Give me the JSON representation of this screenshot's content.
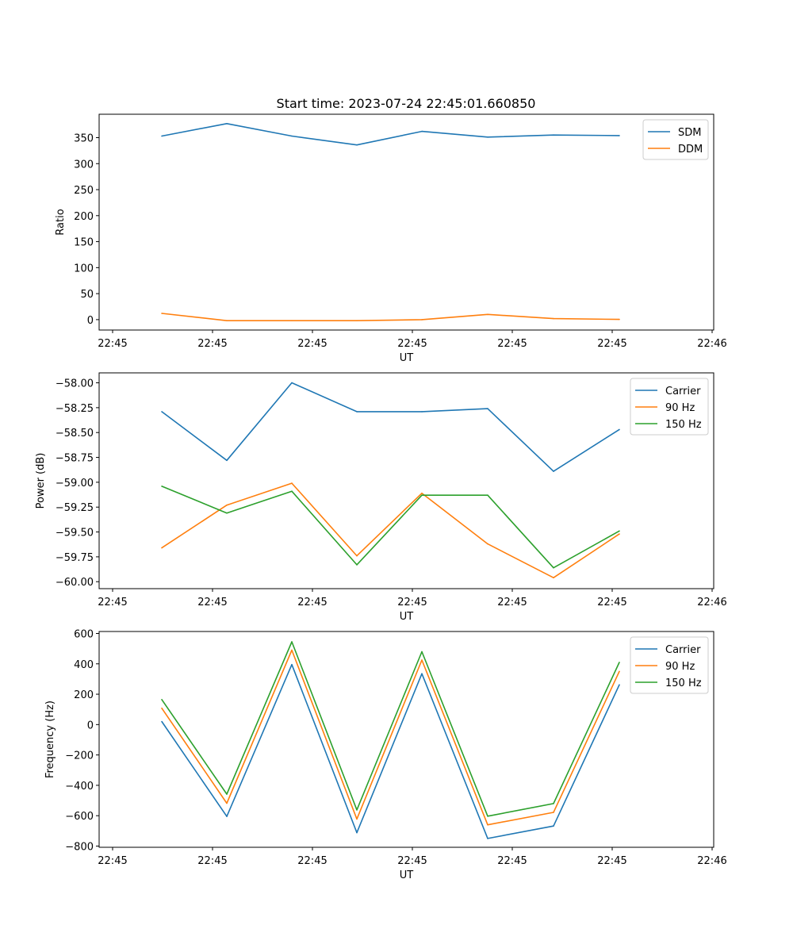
{
  "figure_title": "Start time: 2023-07-24 22:45:01.660850",
  "chart_data": [
    {
      "type": "line",
      "title": "Start time: 2023-07-24 22:45:01.660850",
      "xlabel": "UT",
      "ylabel": "Ratio",
      "x_tick_labels": [
        "22:45",
        "22:45",
        "22:45",
        "22:45",
        "22:45",
        "22:45",
        "22:46"
      ],
      "y_ticks": [
        0,
        50,
        100,
        150,
        200,
        250,
        300,
        350
      ],
      "ylim": [
        -20,
        395
      ],
      "legend": "top-right",
      "series": [
        {
          "name": "SDM",
          "color": "#1f77b4",
          "values": [
            353,
            377,
            353,
            336,
            362,
            351,
            355,
            354
          ]
        },
        {
          "name": "DDM",
          "color": "#ff7f0e",
          "values": [
            12,
            -2,
            -2,
            -2,
            0,
            10,
            2,
            0.5
          ]
        }
      ]
    },
    {
      "type": "line",
      "title": "",
      "xlabel": "UT",
      "ylabel": "Power (dB)",
      "x_tick_labels": [
        "22:45",
        "22:45",
        "22:45",
        "22:45",
        "22:45",
        "22:45",
        "22:46"
      ],
      "y_ticks": [
        -60.0,
        -59.75,
        -59.5,
        -59.25,
        -59.0,
        -58.75,
        -58.5,
        -58.25,
        -58.0
      ],
      "y_tick_labels": [
        "−60.00",
        "−59.75",
        "−59.50",
        "−59.25",
        "−59.00",
        "−58.75",
        "−58.50",
        "−58.25",
        "−58.00"
      ],
      "ylim": [
        -60.07,
        -57.9
      ],
      "legend": "top-right",
      "series": [
        {
          "name": "Carrier",
          "color": "#1f77b4",
          "values": [
            -58.29,
            -58.78,
            -58.0,
            -58.29,
            -58.29,
            -58.26,
            -58.89,
            -58.47
          ]
        },
        {
          "name": "90 Hz",
          "color": "#ff7f0e",
          "values": [
            -59.66,
            -59.23,
            -59.01,
            -59.74,
            -59.11,
            -59.62,
            -59.96,
            -59.52
          ]
        },
        {
          "name": "150 Hz",
          "color": "#2ca02c",
          "values": [
            -59.04,
            -59.31,
            -59.09,
            -59.83,
            -59.13,
            -59.13,
            -59.86,
            -59.49
          ]
        }
      ]
    },
    {
      "type": "line",
      "title": "",
      "xlabel": "UT",
      "ylabel": "Frequency (Hz)",
      "x_tick_labels": [
        "22:45",
        "22:45",
        "22:45",
        "22:45",
        "22:45",
        "22:45",
        "22:46"
      ],
      "y_ticks": [
        -800,
        -600,
        -400,
        -200,
        0,
        200,
        400,
        600
      ],
      "y_tick_labels": [
        "−800",
        "−600",
        "−400",
        "−200",
        "0",
        "200",
        "400",
        "600"
      ],
      "ylim": [
        -808,
        613
      ],
      "legend": "top-right",
      "series": [
        {
          "name": "Carrier",
          "color": "#1f77b4",
          "values": [
            20,
            -605,
            395,
            -712,
            335,
            -750,
            -668,
            262
          ]
        },
        {
          "name": "90 Hz",
          "color": "#ff7f0e",
          "values": [
            108,
            -518,
            490,
            -622,
            425,
            -660,
            -578,
            350
          ]
        },
        {
          "name": "150 Hz",
          "color": "#2ca02c",
          "values": [
            165,
            -458,
            545,
            -562,
            480,
            -603,
            -520,
            410
          ]
        }
      ]
    }
  ]
}
